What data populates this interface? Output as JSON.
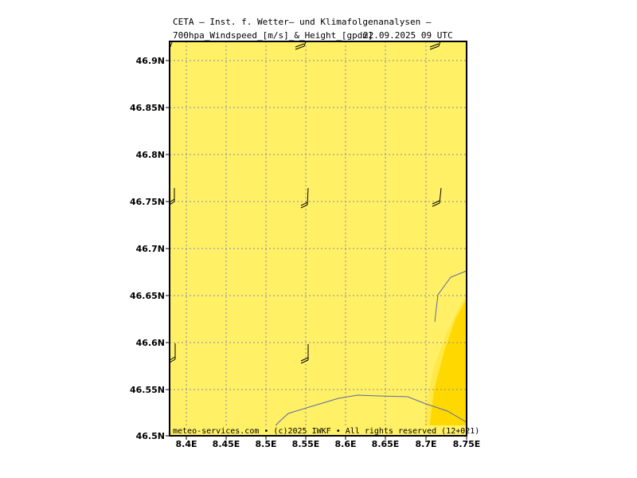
{
  "header": {
    "line1": "CETA — Inst. f. Wetter— und Klimafolgenanalysen —",
    "line2": "700hpa_Windspeed_[m/s]_&_Height_[gpdm]",
    "date": "22.09.2025 09 UTC"
  },
  "footer": {
    "credit": "meteo-services.com • (c)2025 IWKF • All rights reserved (12+021)"
  },
  "map": {
    "lat_labels": [
      "46.9N",
      "46.85N",
      "46.8N",
      "46.75N",
      "46.7N",
      "46.65N",
      "46.6N",
      "46.55N",
      "46.5N"
    ],
    "lon_labels": [
      "8.4E",
      "8.45E",
      "8.5E",
      "8.55E",
      "8.6E",
      "8.65E",
      "8.7E",
      "8.75E"
    ],
    "lat_range": [
      46.5,
      46.92
    ],
    "lon_range": [
      8.38,
      8.75
    ],
    "colors": {
      "background": "#fff066",
      "higher_wind_fill": "#ffd800",
      "mid_band_fill": "#ffe84a",
      "gridline": "#8a8aa8",
      "coastline": "#5a6aa8",
      "wind_barb": "#000000",
      "frame": "#000000"
    },
    "wind_barbs": [
      {
        "lon": 8.38,
        "lat": 46.92
      },
      {
        "lon": 8.55,
        "lat": 46.92
      },
      {
        "lon": 8.72,
        "lat": 46.92
      },
      {
        "lon": 8.38,
        "lat": 46.75
      },
      {
        "lon": 8.55,
        "lat": 46.75
      },
      {
        "lon": 8.72,
        "lat": 46.75
      },
      {
        "lon": 8.38,
        "lat": 46.58
      },
      {
        "lon": 8.55,
        "lat": 46.58
      }
    ]
  }
}
